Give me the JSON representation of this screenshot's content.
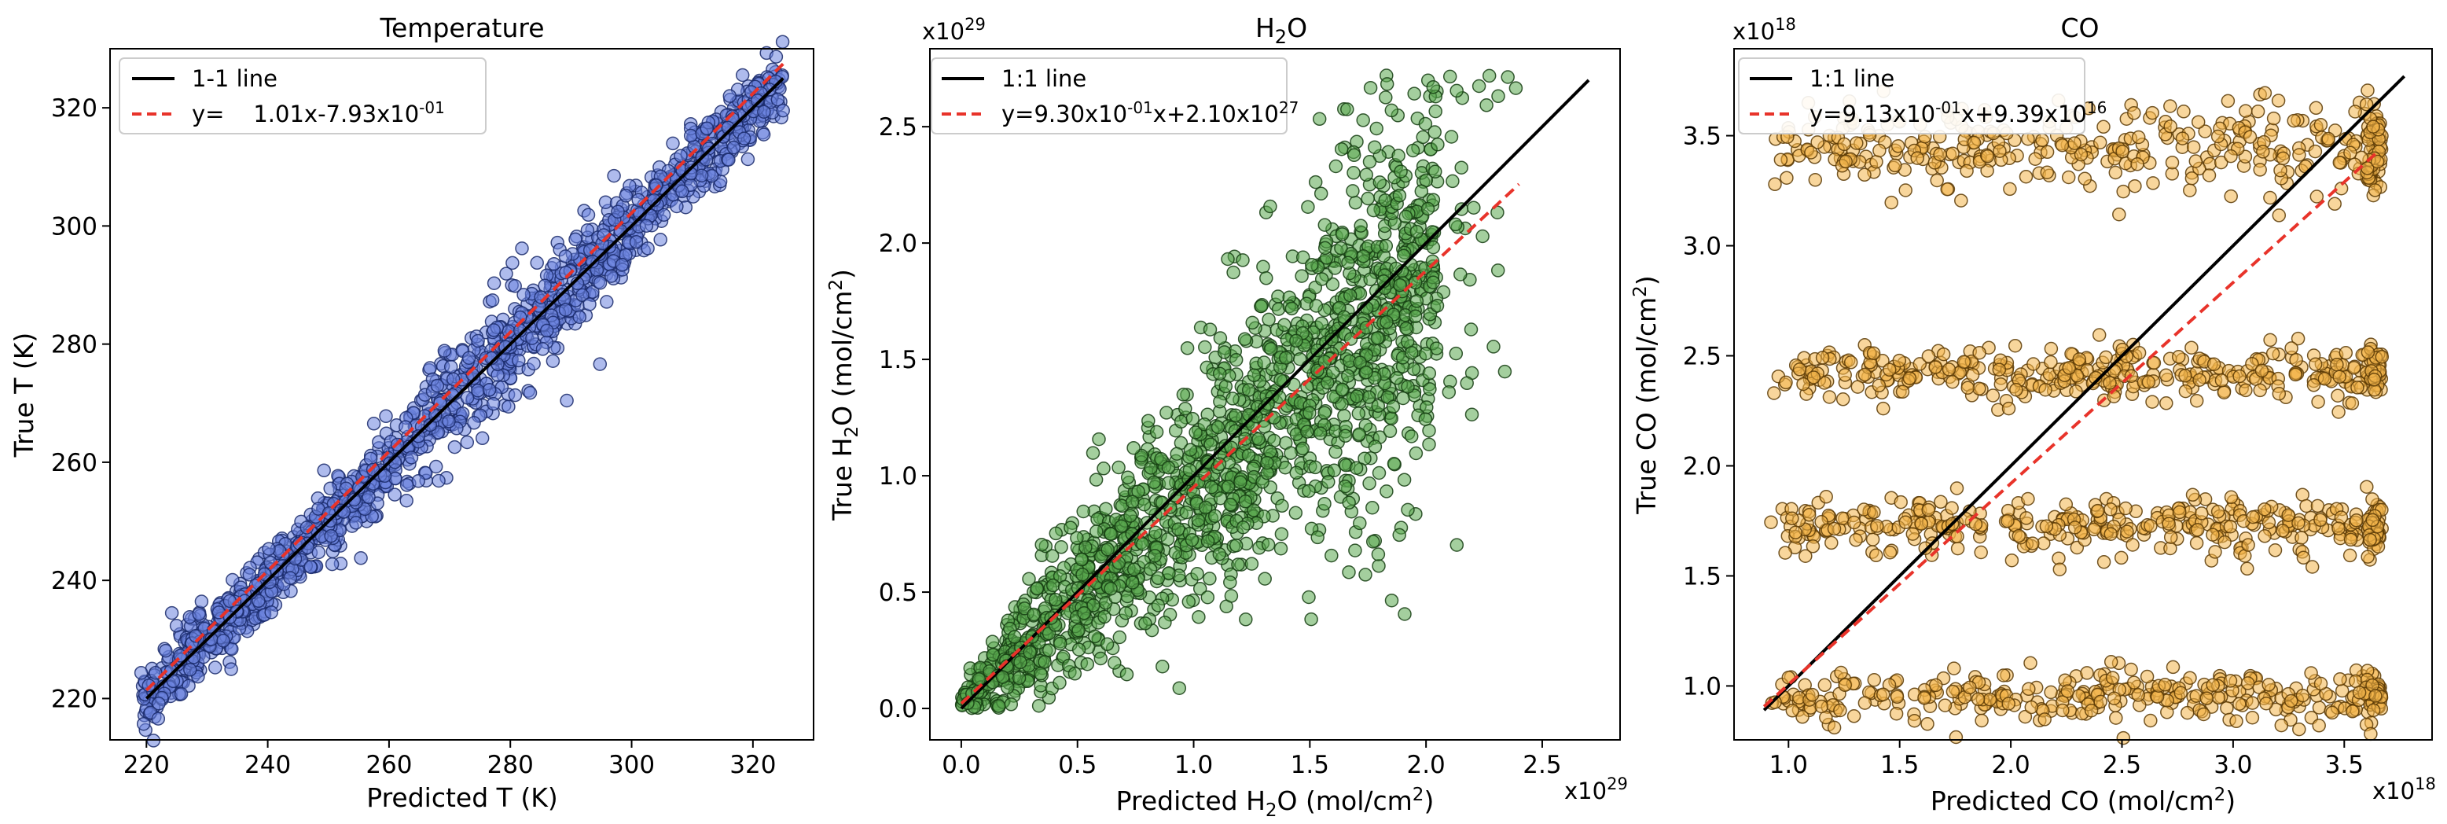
{
  "figure": {
    "panels_count": 3
  },
  "chart_data": [
    {
      "type": "scatter",
      "title": "Temperature",
      "xlabel": "Predicted T (K)",
      "ylabel": "True T (K)",
      "xlim": [
        214,
        330
      ],
      "ylim": [
        213,
        330
      ],
      "xticks": [
        220,
        240,
        260,
        280,
        300,
        320
      ],
      "yticks": [
        220,
        240,
        260,
        280,
        300,
        320
      ],
      "xtick_labels": [
        "220",
        "240",
        "260",
        "280",
        "300",
        "320"
      ],
      "ytick_labels": [
        "220",
        "240",
        "260",
        "280",
        "300",
        "320"
      ],
      "x_exponent_label": "",
      "y_exponent_label": "",
      "colors": {
        "point_fill": "#6c84de",
        "point_edge": "#1a2a6b",
        "one_to_one": "#000000",
        "fit": "#e8332a"
      },
      "legend_position": "top-left",
      "series": [
        {
          "name": "1-1 line",
          "kind": "line",
          "x": [
            220,
            325
          ],
          "y": [
            220,
            325
          ]
        },
        {
          "name": "y=  1.01x-7.93x10^-01",
          "kind": "fit",
          "slope": 1.01,
          "intercept": -0.793,
          "x": [
            220,
            325
          ]
        },
        {
          "name": "samples",
          "kind": "scatter",
          "description_range_x": [
            218,
            326
          ],
          "spread": 4
        }
      ],
      "legend": [
        {
          "label": "1-1 line",
          "style": "solid"
        },
        {
          "label_parts": [
            "y=    1.01x-7.93x10",
            "-01"
          ],
          "style": "dashed"
        }
      ]
    },
    {
      "type": "scatter",
      "title": "H₂O",
      "xlabel": "Predicted H₂O (mol/cm²)",
      "ylabel": "True H₂O (mol/cm²)",
      "xlim": [
        -0.135,
        2.835
      ],
      "ylim": [
        -0.135,
        2.835
      ],
      "xticks": [
        0.0,
        0.5,
        1.0,
        1.5,
        2.0,
        2.5
      ],
      "yticks": [
        0.0,
        0.5,
        1.0,
        1.5,
        2.0,
        2.5
      ],
      "xtick_labels": [
        "0.0",
        "0.5",
        "1.0",
        "1.5",
        "2.0",
        "2.5"
      ],
      "ytick_labels": [
        "0.0",
        "0.5",
        "1.0",
        "1.5",
        "2.0",
        "2.5"
      ],
      "x_exponent_label": "x10^29",
      "y_exponent_label": "x10^29",
      "colors": {
        "point_fill": "#5aa84e",
        "point_edge": "#153d12",
        "one_to_one": "#000000",
        "fit": "#e8332a"
      },
      "legend_position": "top-left",
      "series": [
        {
          "name": "1:1 line",
          "kind": "line",
          "x": [
            0.0,
            2.7
          ],
          "y": [
            0.0,
            2.7
          ]
        },
        {
          "name": "y=9.30x10^-01x+2.10x10^27",
          "kind": "fit",
          "slope": 0.93,
          "intercept": 0.021,
          "x": [
            0.0,
            2.4
          ]
        },
        {
          "name": "samples",
          "kind": "scatter",
          "description_range_x": [
            0.0,
            2.4
          ]
        }
      ],
      "legend": [
        {
          "label": "1:1 line",
          "style": "solid"
        },
        {
          "label_parts": [
            "y=9.30x10",
            "-01",
            "x+2.10x10",
            "27"
          ],
          "style": "dashed"
        }
      ]
    },
    {
      "type": "scatter",
      "title": "CO",
      "xlabel": "Predicted CO (mol/cm²)",
      "ylabel": "True CO (mol/cm²)",
      "xlim": [
        0.755,
        3.895
      ],
      "ylim": [
        0.755,
        3.895
      ],
      "xticks": [
        1.0,
        1.5,
        2.0,
        2.5,
        3.0,
        3.5
      ],
      "yticks": [
        1.0,
        1.5,
        2.0,
        2.5,
        3.0,
        3.5
      ],
      "xtick_labels": [
        "1.0",
        "1.5",
        "2.0",
        "2.5",
        "3.0",
        "3.5"
      ],
      "ytick_labels": [
        "1.0",
        "1.5",
        "2.0",
        "2.5",
        "3.0",
        "3.5"
      ],
      "x_exponent_label": "x10^18",
      "y_exponent_label": "x10^18",
      "colors": {
        "point_fill": "#f3b54a",
        "point_edge": "#5a3a05",
        "one_to_one": "#000000",
        "fit": "#e8332a"
      },
      "legend_position": "top-left",
      "series": [
        {
          "name": "1:1 line",
          "kind": "line",
          "x": [
            0.89,
            3.77
          ],
          "y": [
            0.89,
            3.77
          ]
        },
        {
          "name": "y=9.13x10^-01x+9.39x10^16",
          "kind": "fit",
          "slope": 0.913,
          "intercept": 0.0939,
          "x": [
            0.89,
            3.65
          ]
        },
        {
          "name": "samples",
          "kind": "scatter",
          "bands_y": [
            0.95,
            1.73,
            2.42,
            3.45
          ],
          "description_range_x": [
            0.9,
            3.65
          ]
        }
      ],
      "legend": [
        {
          "label": "1:1 line",
          "style": "solid"
        },
        {
          "label_parts": [
            "y=9.13x10",
            "-01",
            "x+9.39x10",
            "16"
          ],
          "style": "dashed"
        }
      ]
    }
  ],
  "labels": {
    "p0": {
      "title": "Temperature",
      "xlabel": "Predicted T (K)",
      "ylabel": "True T (K)"
    },
    "p1": {
      "title_main": "H",
      "title_sub": "2",
      "title_tail": "O",
      "xlabel_a": "Predicted H",
      "xlabel_sub": "2",
      "xlabel_b": "O (mol/cm",
      "xlabel_sup": "2",
      "xlabel_c": ")",
      "ylabel_a": "True H",
      "ylabel_sub": "2",
      "ylabel_b": "O (mol/cm",
      "ylabel_sup": "2",
      "ylabel_c": ")",
      "exp_base": "x10",
      "exp_power": "29"
    },
    "p2": {
      "title": "CO",
      "xlabel_a": "Predicted CO (mol/cm",
      "xlabel_sup": "2",
      "xlabel_c": ")",
      "ylabel_a": "True CO (mol/cm",
      "ylabel_sup": "2",
      "ylabel_c": ")",
      "exp_base": "x10",
      "exp_power": "18"
    }
  }
}
